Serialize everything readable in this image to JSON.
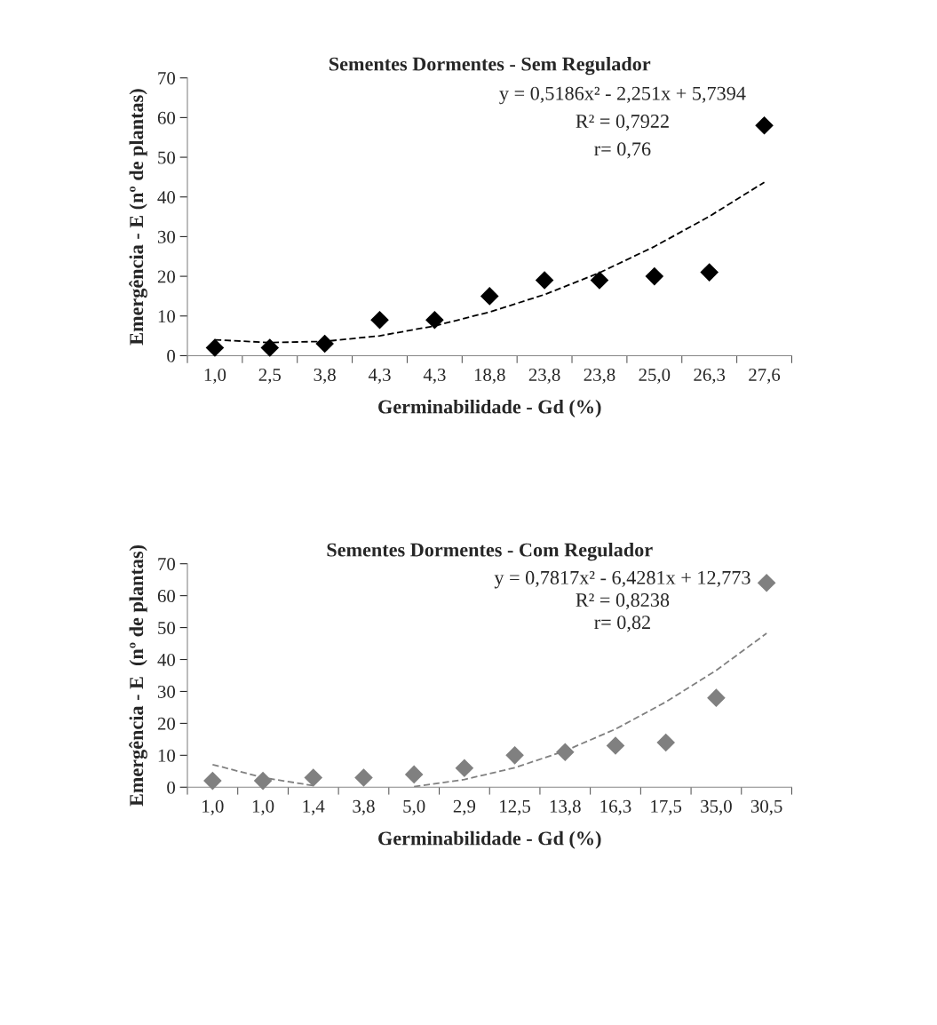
{
  "chart_data": [
    {
      "type": "scatter",
      "title": "Sementes Dormentes - Sem Regulador",
      "xlabel": "Germinabilidade - Gd (%)",
      "ylabel": "Emergência - E (nº de plantas)",
      "categories": [
        "1,0",
        "2,5",
        "3,8",
        "4,3",
        "4,3",
        "18,8",
        "23,8",
        "23,8",
        "25,0",
        "26,3",
        "27,6"
      ],
      "series": [
        {
          "color": "#000000",
          "marker": "diamond",
          "values": [
            2,
            2,
            3,
            9,
            9,
            15,
            19,
            19,
            20,
            21,
            58
          ]
        },
        {
          "type": "line",
          "color": "#000000",
          "line_style": "dashed",
          "marker": "none",
          "values": [
            4.0,
            3.3,
            3.6,
            5.0,
            7.5,
            11.0,
            15.4,
            20.9,
            27.5,
            35.1,
            43.7
          ]
        }
      ],
      "ylim": [
        0,
        70
      ],
      "yticks": [
        0,
        10,
        20,
        30,
        40,
        50,
        60,
        70
      ],
      "grid": false,
      "legend": false,
      "annotations": [
        "y = 0,5186x² - 2,251x + 5,7394",
        "R² = 0,7922",
        "r= 0,76"
      ]
    },
    {
      "type": "scatter",
      "title": "Sementes Dormentes - Com Regulador",
      "xlabel": "Germinabilidade - Gd (%)",
      "ylabel": "Emergência - E  (nº de plantas)",
      "categories": [
        "1,0",
        "1,0",
        "1,4",
        "3,8",
        "5,0",
        "2,9",
        "12,5",
        "13,8",
        "16,3",
        "17,5",
        "35,0",
        "30,5"
      ],
      "series": [
        {
          "color": "#808080",
          "marker": "diamond",
          "values": [
            2,
            2,
            3,
            3,
            4,
            6,
            10,
            11,
            13,
            14,
            28,
            64
          ]
        },
        {
          "type": "line",
          "color": "#808080",
          "line_style": "dashed",
          "marker": "none",
          "values": [
            7.1,
            3.0,
            0.5,
            null,
            0.2,
            2.4,
            6.1,
            11.4,
            18.2,
            26.7,
            36.6,
            48.2
          ]
        }
      ],
      "ylim": [
        0,
        70
      ],
      "yticks": [
        0,
        10,
        20,
        30,
        40,
        50,
        60,
        70
      ],
      "grid": false,
      "legend": false,
      "annotations": [
        "y = 0,7817x² - 6,4281x + 12,773",
        "R² = 0,8238",
        "r= 0,82"
      ]
    }
  ]
}
